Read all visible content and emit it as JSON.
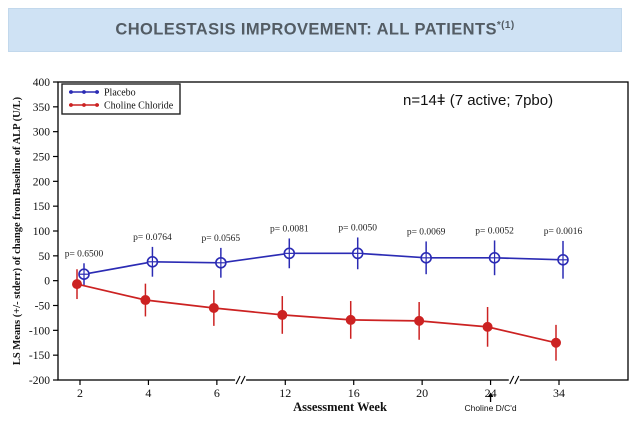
{
  "header": {
    "title": "CHOLESTASIS IMPROVEMENT: ALL PATIENTS",
    "title_superscript": "*(1)"
  },
  "chart_data": {
    "type": "line",
    "title": "",
    "xlabel": "Assessment Week",
    "ylabel": "LS Means (+/- stderr) of change from Baseline of ALP (U/L)",
    "x_categories": [
      "2",
      "4",
      "6",
      "12",
      "16",
      "20",
      "24",
      "34"
    ],
    "axis_breaks_after": [
      "6",
      "24"
    ],
    "ylim": [
      -200,
      400
    ],
    "ytick_step": 50,
    "yticks": [
      400,
      350,
      300,
      250,
      200,
      150,
      100,
      50,
      0,
      -50,
      -100,
      -150,
      -200
    ],
    "grid": "off",
    "frame": "box",
    "series": [
      {
        "name": "Placebo",
        "color": "#2b2bb4",
        "marker": "circle-plus",
        "x_offset": 4,
        "values": [
          13,
          38,
          36,
          55,
          55,
          46,
          46,
          42
        ],
        "stderr": [
          22,
          30,
          30,
          30,
          32,
          33,
          35,
          38
        ]
      },
      {
        "name": "Choline Chloride",
        "color": "#cc2222",
        "marker": "filled-circle",
        "x_offset": -3,
        "values": [
          -7,
          -39,
          -55,
          -69,
          -79,
          -81,
          -93,
          -125
        ],
        "stderr": [
          30,
          33,
          36,
          38,
          38,
          38,
          40,
          36
        ]
      }
    ],
    "p_values": [
      "p= 0.6500",
      "p= 0.0764",
      "p= 0.0565",
      "p= 0.0081",
      "p= 0.0050",
      "p= 0.0069",
      "p= 0.0052",
      "p= 0.0016"
    ],
    "legend": {
      "position": "top-left",
      "entries": [
        "Placebo",
        "Choline Chloride"
      ]
    },
    "annotations": {
      "sample_size": "n=14ǂ (7 active; 7pbo)",
      "choline_dcd": "Choline D/C'd",
      "choline_dcd_week": "24"
    }
  }
}
